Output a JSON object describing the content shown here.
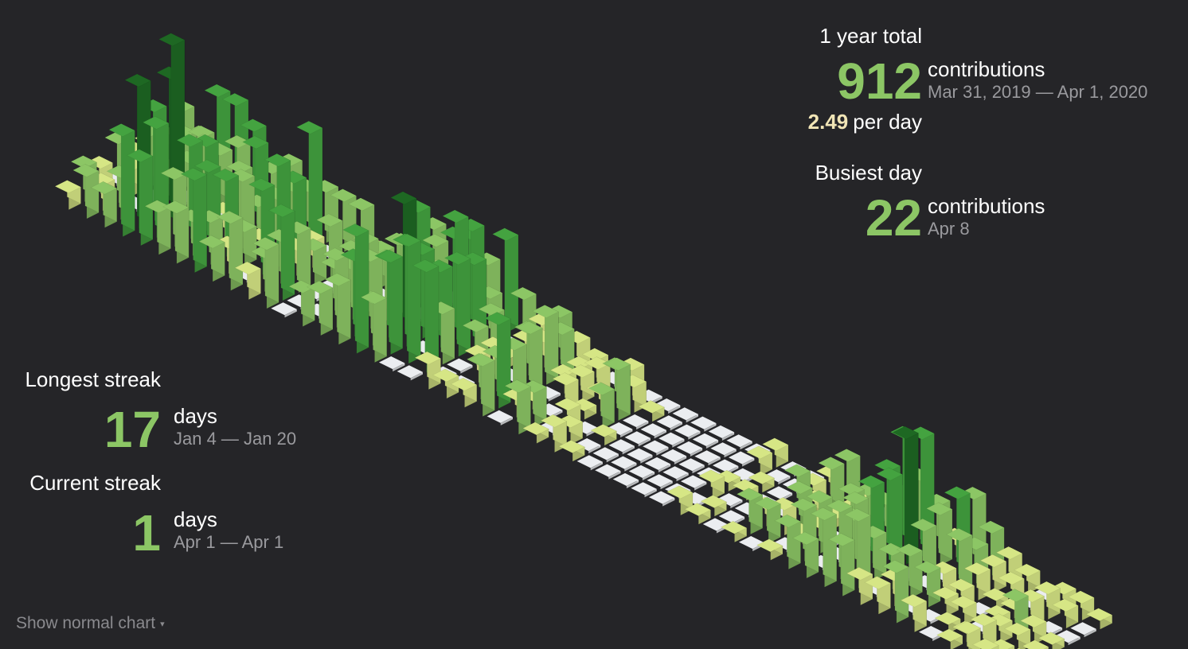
{
  "total": {
    "title": "1 year total",
    "count": "912",
    "unit": "contributions",
    "range": "Mar 31, 2019 — Apr 1, 2020",
    "per_day_value": "2.49",
    "per_day_label": "per day"
  },
  "busiest": {
    "title": "Busiest day",
    "count": "22",
    "unit": "contributions",
    "date": "Apr 8"
  },
  "longest_streak": {
    "title": "Longest streak",
    "count": "17",
    "unit": "days",
    "range": "Jan 4 — Jan 20"
  },
  "current_streak": {
    "title": "Current streak",
    "count": "1",
    "unit": "days",
    "range": "Apr 1 — Apr 1"
  },
  "toggle": {
    "label": "Show normal chart",
    "caret": "▾"
  },
  "colors": {
    "background": "#252528",
    "accent": "#8cc665",
    "rate": "#f1e5b6",
    "muted": "#9a9a9e",
    "empty_day": "#ebedf0",
    "level_1": "#d6e685",
    "level_2": "#8cc665",
    "level_3": "#44a340",
    "level_4": "#1e6823"
  },
  "chart_data": {
    "type": "isometric-contribution-calendar",
    "weeks": 53,
    "days_per_week": 7,
    "max_day_count": 22,
    "weekly_profile": [
      3,
      6,
      5,
      16,
      18,
      10,
      8,
      9,
      6,
      12,
      5,
      9,
      2,
      7,
      8,
      9,
      12,
      11,
      14,
      10,
      6,
      3,
      5,
      8,
      2,
      4,
      3,
      6,
      1,
      0,
      0,
      0,
      0,
      0,
      2,
      1,
      0,
      3,
      4,
      1,
      5,
      7,
      11,
      14,
      6,
      7,
      5,
      3,
      2,
      1,
      4,
      2,
      1
    ]
  }
}
